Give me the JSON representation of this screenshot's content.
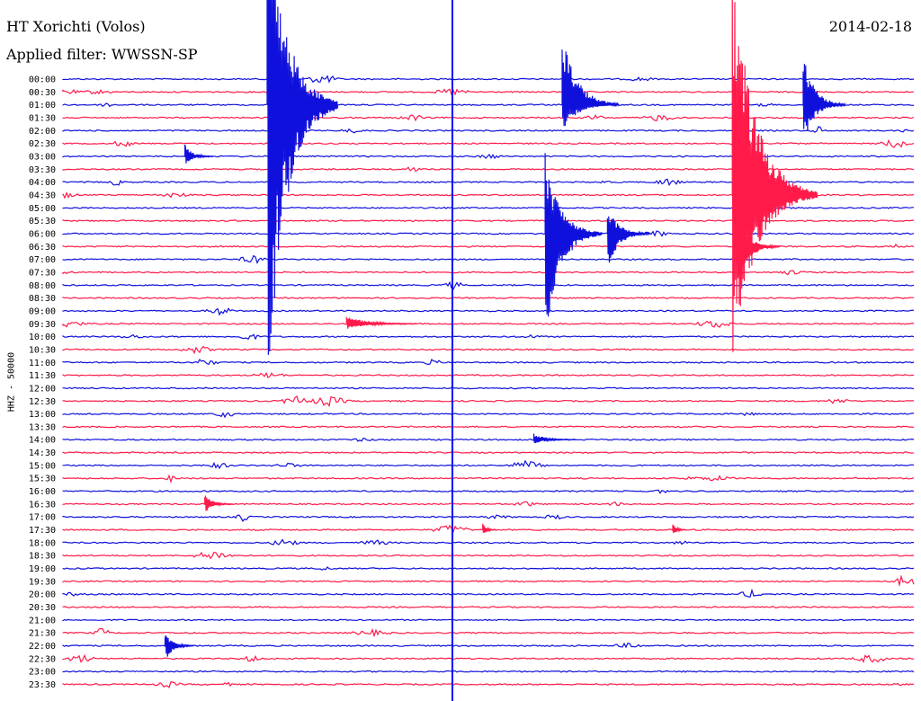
{
  "header": {
    "station": "HT Xorichti (Volos)",
    "filter": "Applied filter: WWSSN-SP",
    "date": "2014-02-18"
  },
  "colors": {
    "even": "#1010dd",
    "odd": "#ff1a4a",
    "marker": "#0000ff"
  },
  "chart_data": {
    "type": "line",
    "title": "HT Xorichti (Volos)",
    "subtitle": "Applied filter: WWSSN-SP",
    "ylabel": "HHZ - 50000",
    "xlabel": "",
    "rows": [
      "00:00",
      "00:30",
      "01:00",
      "01:30",
      "02:00",
      "02:30",
      "03:00",
      "03:30",
      "04:00",
      "04:30",
      "05:00",
      "05:30",
      "06:00",
      "06:30",
      "07:00",
      "07:30",
      "08:00",
      "08:30",
      "09:00",
      "09:30",
      "10:00",
      "10:30",
      "11:00",
      "11:30",
      "12:00",
      "12:30",
      "13:00",
      "13:30",
      "14:00",
      "14:30",
      "15:00",
      "15:30",
      "16:00",
      "16:30",
      "17:00",
      "17:30",
      "18:00",
      "18:30",
      "19:00",
      "19:30",
      "20:00",
      "20:30",
      "21:00",
      "21:30",
      "22:00",
      "22:30",
      "23:00",
      "23:30"
    ],
    "current_time_marker": "07:30",
    "events": [
      {
        "row": 2,
        "minute": 7.2,
        "amp": 260,
        "dur": 2.5,
        "down": 330
      },
      {
        "row": 2,
        "minute": 17.6,
        "amp": 85,
        "dur": 2.0,
        "down": 30
      },
      {
        "row": 2,
        "minute": 26.1,
        "amp": 60,
        "dur": 1.5,
        "down": 45
      },
      {
        "row": 6,
        "minute": 4.3,
        "amp": 14,
        "dur": 1.0,
        "down": 10
      },
      {
        "row": 12,
        "minute": 17.0,
        "amp": 90,
        "dur": 2.0,
        "down": 125
      },
      {
        "row": 12,
        "minute": 19.2,
        "amp": 30,
        "dur": 1.5,
        "down": 40
      },
      {
        "row": 9,
        "minute": 23.6,
        "amp": 260,
        "dur": 3.0,
        "down": 200
      },
      {
        "row": 13,
        "minute": 23.8,
        "amp": 30,
        "dur": 1.5,
        "down": 40
      },
      {
        "row": 19,
        "minute": 10.0,
        "amp": 10,
        "dur": 2.5,
        "down": 6
      },
      {
        "row": 28,
        "minute": 16.6,
        "amp": 7,
        "dur": 1.5,
        "down": 5
      },
      {
        "row": 33,
        "minute": 5.0,
        "amp": 12,
        "dur": 1.0,
        "down": 10
      },
      {
        "row": 44,
        "minute": 3.6,
        "amp": 14,
        "dur": 1.0,
        "down": 20
      },
      {
        "row": 35,
        "minute": 14.8,
        "amp": 9,
        "dur": 0.5,
        "down": 6
      },
      {
        "row": 35,
        "minute": 21.5,
        "amp": 9,
        "dur": 0.5,
        "down": 6
      }
    ]
  }
}
